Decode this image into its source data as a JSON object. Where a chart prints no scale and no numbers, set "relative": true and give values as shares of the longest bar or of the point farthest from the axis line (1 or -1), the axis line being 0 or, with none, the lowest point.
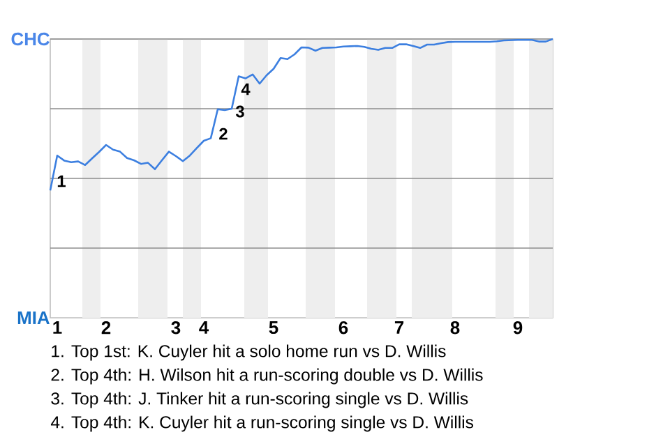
{
  "chart_data": {
    "type": "line",
    "relative": true,
    "categories": [
      null,
      "1",
      null,
      null,
      null,
      null,
      null,
      null,
      "2",
      null,
      null,
      null,
      null,
      null,
      null,
      null,
      null,
      null,
      "3",
      null,
      null,
      null,
      "4",
      null,
      null,
      null,
      null,
      null,
      null,
      null,
      null,
      null,
      "5",
      null,
      null,
      null,
      null,
      null,
      null,
      null,
      null,
      null,
      "6",
      null,
      null,
      null,
      null,
      null,
      null,
      null,
      "7",
      null,
      null,
      null,
      null,
      null,
      null,
      null,
      "8",
      null,
      null,
      null,
      null,
      null,
      null,
      null,
      null,
      "9",
      null,
      null,
      null,
      null,
      null
    ],
    "series": [
      {
        "color": "#3c7fe0",
        "values": [
          0.457,
          0.582,
          0.564,
          0.558,
          0.561,
          0.548,
          0.572,
          0.595,
          0.62,
          0.603,
          0.596,
          0.573,
          0.565,
          0.552,
          0.556,
          0.533,
          0.565,
          0.596,
          0.58,
          0.562,
          0.582,
          0.609,
          0.635,
          0.644,
          0.748,
          0.745,
          0.75,
          0.866,
          0.859,
          0.873,
          0.84,
          0.87,
          0.893,
          0.932,
          0.928,
          0.945,
          0.97,
          0.969,
          0.958,
          0.968,
          0.969,
          0.97,
          0.973,
          0.974,
          0.975,
          0.972,
          0.965,
          0.961,
          0.968,
          0.968,
          0.981,
          0.981,
          0.975,
          0.968,
          0.98,
          0.98,
          0.985,
          0.989,
          0.99,
          0.99,
          0.99,
          0.99,
          0.99,
          0.99,
          0.992,
          0.995,
          0.996,
          0.997,
          0.997,
          0.997,
          0.991,
          0.991,
          1
        ]
      }
    ],
    "grid": "y",
    "annotations": [
      "CHC",
      "MIA",
      "1",
      "2",
      "3",
      "4",
      "1. Top 1st: K. Cuyler hit a solo home run vs D. Willis",
      "2. Top 4th: H. Wilson hit a run-scoring double vs D. Willis",
      "3. Top 4th: J. Tinker hit a run-scoring single vs D. Willis",
      "4. Top 4th: K. Cuyler hit a run-scoring single vs D. Willis"
    ]
  }
}
